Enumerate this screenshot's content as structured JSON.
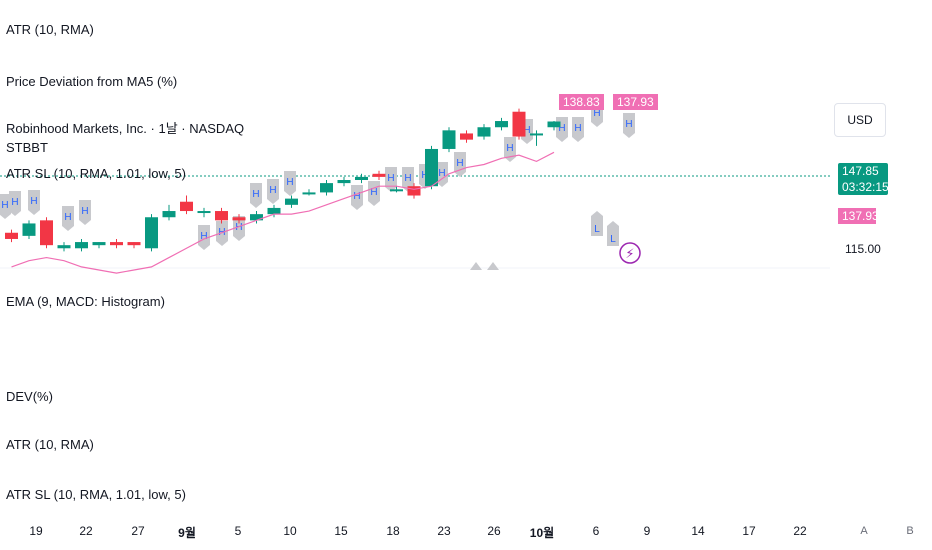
{
  "panes": {
    "atr_top": "ATR (10, RMA)",
    "price_deviation": "Price Deviation from MA5 (%)",
    "symbol": "Robinhood Markets, Inc. · 1날 · NASDAQ",
    "stbbt": "STBBT",
    "atr_sl": "ATR SL (10, RMA, 1.01, low, 5)",
    "ema_macd": "EMA (9, MACD: Histogram)",
    "dev": "DEV(%)",
    "atr_bottom": "ATR (10, RMA)",
    "atr_sl_bottom": "ATR SL (10, RMA, 1.01, low, 5)"
  },
  "price_axis": {
    "currency": "USD",
    "last_price": "147.85",
    "countdown": "03:32:15",
    "atr_sl_value": "137.93",
    "level_label": "115.00",
    "top_tag_1": "138.83",
    "top_tag_2": "137.93"
  },
  "time_axis": [
    "19",
    "22",
    "27",
    "9월",
    "5",
    "10",
    "15",
    "18",
    "23",
    "26",
    "10월",
    "6",
    "9",
    "14",
    "17",
    "22"
  ],
  "nav": {
    "auto": "A",
    "browse": "B"
  },
  "markers": {
    "high": "H",
    "low": "L"
  },
  "colors": {
    "up": "#089981",
    "down": "#f23645",
    "atr_line": "#f06fb4",
    "marker_bg": "#c8c9cd",
    "marker_text": "#2962ff",
    "event": "#9c27b0",
    "last_price_line": "#089981"
  },
  "chart_data": {
    "type": "candlestick",
    "candles": [
      {
        "o": 112,
        "c": 110,
        "h": 113,
        "l": 109
      },
      {
        "o": 111,
        "c": 115,
        "h": 116,
        "l": 110
      },
      {
        "o": 116,
        "c": 108,
        "h": 117,
        "l": 107
      },
      {
        "o": 107,
        "c": 108,
        "h": 109,
        "l": 106
      },
      {
        "o": 107,
        "c": 109,
        "h": 110,
        "l": 106
      },
      {
        "o": 108,
        "c": 109,
        "h": 109,
        "l": 107
      },
      {
        "o": 109,
        "c": 108,
        "h": 110,
        "l": 107
      },
      {
        "o": 109,
        "c": 108,
        "h": 109,
        "l": 107
      },
      {
        "o": 107,
        "c": 117,
        "h": 118,
        "l": 106
      },
      {
        "o": 117,
        "c": 119,
        "h": 121,
        "l": 116
      },
      {
        "o": 122,
        "c": 119,
        "h": 124,
        "l": 118
      },
      {
        "o": 119,
        "c": 119,
        "h": 120,
        "l": 117
      },
      {
        "o": 119,
        "c": 116,
        "h": 120,
        "l": 115
      },
      {
        "o": 117,
        "c": 116,
        "h": 118,
        "l": 115
      },
      {
        "o": 116,
        "c": 118,
        "h": 119,
        "l": 115
      },
      {
        "o": 118,
        "c": 120,
        "h": 121,
        "l": 117
      },
      {
        "o": 121,
        "c": 123,
        "h": 124,
        "l": 120
      },
      {
        "o": 125,
        "c": 125,
        "h": 126,
        "l": 124
      },
      {
        "o": 125,
        "c": 128,
        "h": 129,
        "l": 124
      },
      {
        "o": 128,
        "c": 129,
        "h": 130,
        "l": 127
      },
      {
        "o": 129,
        "c": 130,
        "h": 131,
        "l": 128
      },
      {
        "o": 131,
        "c": 130,
        "h": 132,
        "l": 129
      },
      {
        "o": 126,
        "c": 126,
        "h": 127,
        "l": 125
      },
      {
        "o": 127,
        "c": 124,
        "h": 128,
        "l": 123
      },
      {
        "o": 127,
        "c": 139,
        "h": 140,
        "l": 126
      },
      {
        "o": 139,
        "c": 145,
        "h": 146,
        "l": 138
      },
      {
        "o": 144,
        "c": 142,
        "h": 145,
        "l": 141
      },
      {
        "o": 143,
        "c": 146,
        "h": 147,
        "l": 142
      },
      {
        "o": 146,
        "c": 148,
        "h": 149,
        "l": 145
      },
      {
        "o": 151,
        "c": 143,
        "h": 152,
        "l": 142
      },
      {
        "o": 144,
        "c": 144,
        "h": 145,
        "l": 140
      },
      {
        "o": 146,
        "c": 147.85,
        "h": 148,
        "l": 145
      }
    ],
    "atr_sl_line": [
      101,
      103,
      104,
      103,
      101,
      100,
      99,
      100,
      101,
      104,
      107,
      110,
      112,
      114,
      116,
      118,
      118,
      119,
      121,
      123,
      125,
      127,
      127,
      126,
      127,
      131,
      133,
      134,
      136,
      137,
      135,
      137.93
    ],
    "high_markers": [
      2,
      3,
      7,
      8,
      11,
      12,
      13,
      14,
      15,
      18,
      19,
      20,
      21,
      22,
      23,
      24,
      25,
      26,
      27,
      29,
      30,
      31,
      33,
      34,
      35,
      37
    ],
    "low_markers": [
      34,
      35
    ]
  }
}
